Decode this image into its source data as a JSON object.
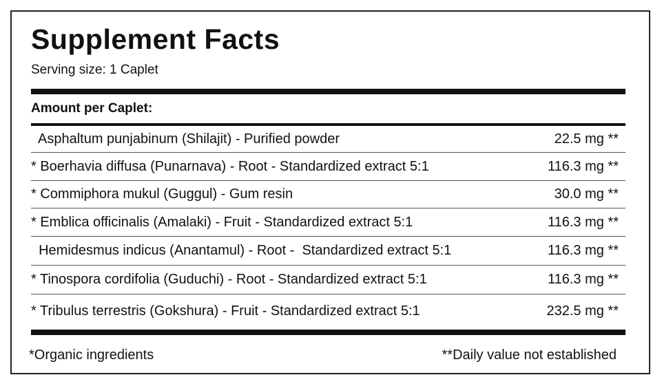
{
  "title": "Supplement Facts",
  "serving_size": "Serving size: 1 Caplet",
  "amount_header": "Amount per Caplet:",
  "ingredients": [
    {
      "name": "  Asphaltum punjabinum (Shilajit) - Purified powder",
      "amount": "22.5 mg **"
    },
    {
      "name": "* Boerhavia diffusa (Punarnava) - Root - Standardized extract 5:1",
      "amount": "116.3 mg **"
    },
    {
      "name": "* Commiphora mukul (Guggul) - Gum resin",
      "amount": "30.0 mg **"
    },
    {
      "name": "* Emblica officinalis (Amalaki) - Fruit - Standardized extract 5:1",
      "amount": "116.3 mg **"
    },
    {
      "name": "  Hemidesmus indicus (Anantamul) - Root -  Standardized extract 5:1",
      "amount": "116.3 mg **"
    },
    {
      "name": "* Tinospora cordifolia (Guduchi) - Root - Standardized extract 5:1",
      "amount": "116.3 mg **"
    },
    {
      "name": "* Tribulus terrestris (Gokshura) - Fruit - Standardized extract 5:1",
      "amount": "232.5 mg **"
    }
  ],
  "footer": {
    "organic_note": "*Organic ingredients",
    "daily_value_note": "**Daily value not established"
  }
}
